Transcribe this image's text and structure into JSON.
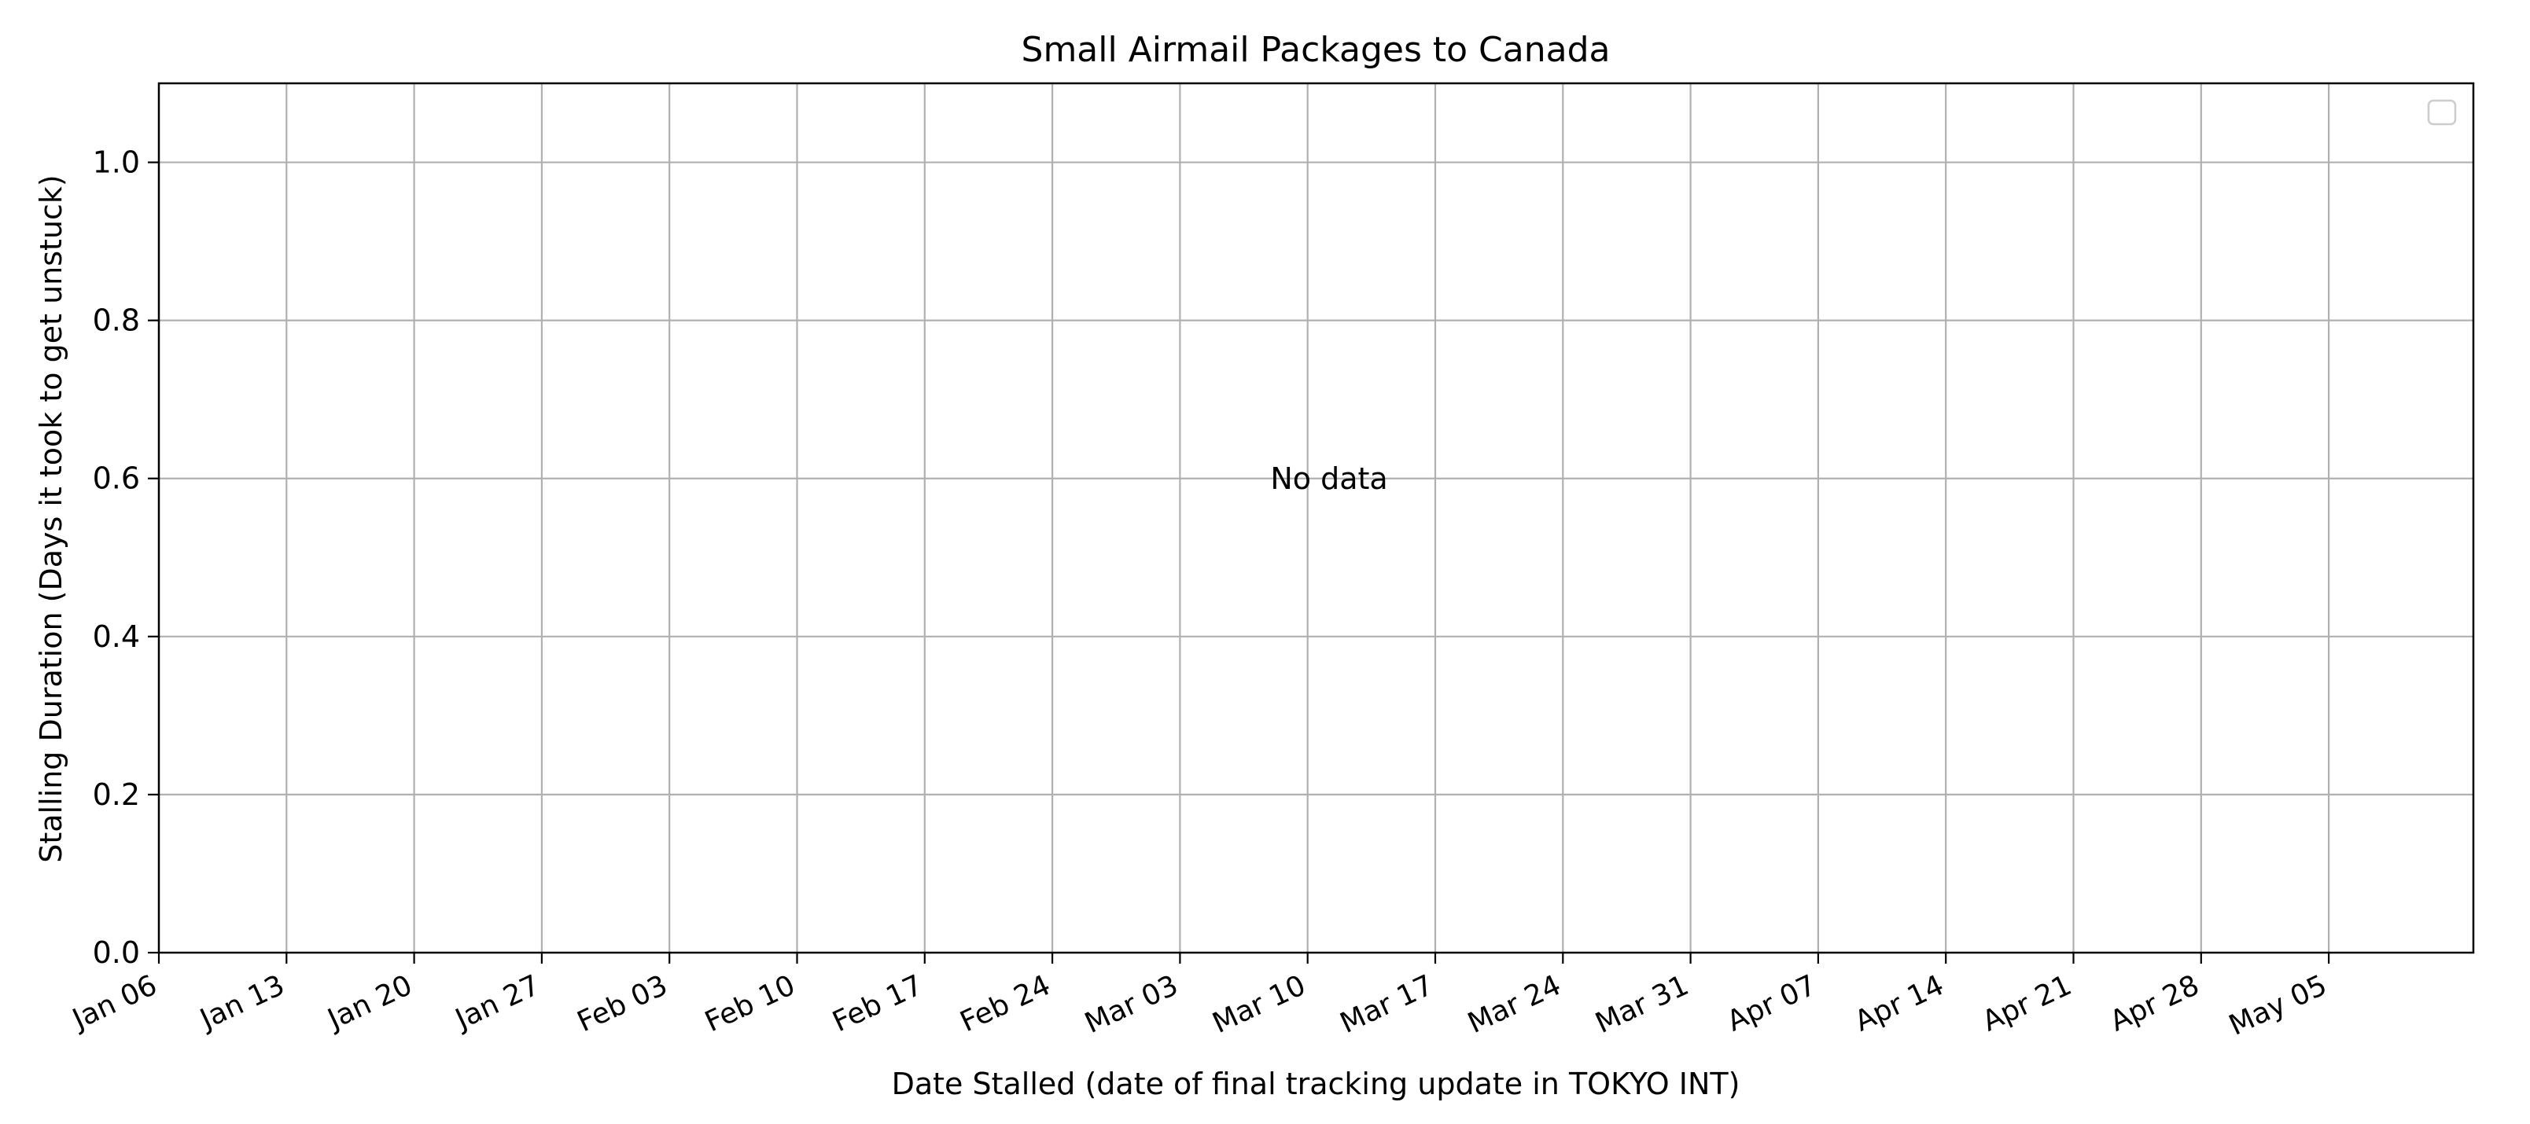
{
  "chart_data": {
    "type": "scatter",
    "title": "Small Airmail Packages to Canada",
    "xlabel": "Date Stalled (date of final tracking update in TOKYO INT)",
    "ylabel": "Stalling Duration (Days it took to get unstuck)",
    "annotation": "No data",
    "x_ticks": [
      "Jan 06",
      "Jan 13",
      "Jan 20",
      "Jan 27",
      "Feb 03",
      "Feb 10",
      "Feb 17",
      "Feb 24",
      "Mar 03",
      "Mar 10",
      "Mar 17",
      "Mar 24",
      "Mar 31",
      "Apr 07",
      "Apr 14",
      "Apr 21",
      "Apr 28",
      "May 05"
    ],
    "y_ticks": [
      "0.0",
      "0.2",
      "0.4",
      "0.6",
      "0.8",
      "1.0"
    ],
    "ylim": [
      0,
      1.1
    ],
    "series": [],
    "grid": true,
    "legend": "top-right (empty)"
  }
}
